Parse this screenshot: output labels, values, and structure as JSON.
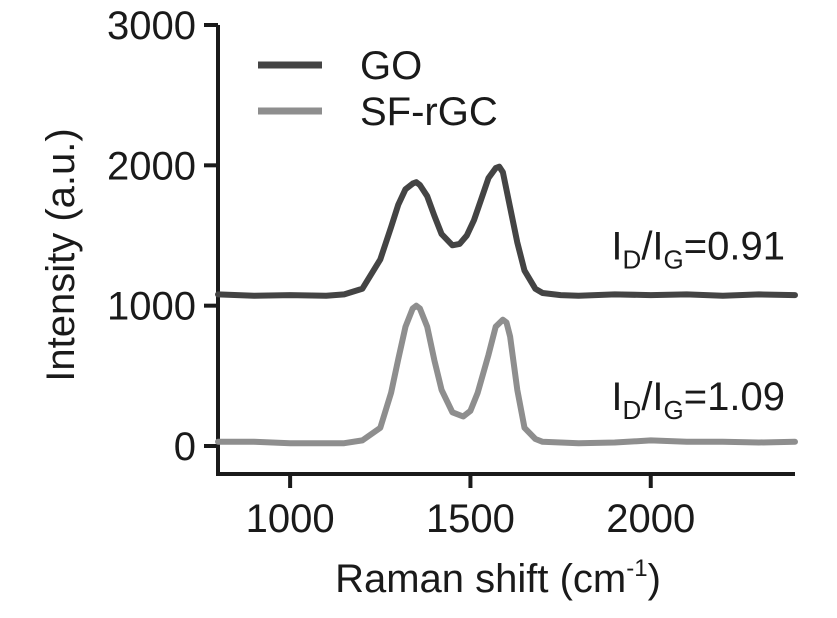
{
  "chart_data": {
    "type": "line",
    "xlabel": "Raman shift (cm",
    "xlabel_sup": "-1",
    "xlabel_close": ")",
    "ylabel": "Intensity (a.u.)",
    "xlim": [
      800,
      2400
    ],
    "ylim": [
      0,
      3000
    ],
    "x_ticks": [
      1000,
      1500,
      2000
    ],
    "x_tick_labels": [
      "1000",
      "1500",
      "2000"
    ],
    "y_ticks": [
      0,
      1000,
      2000,
      3000
    ],
    "y_tick_labels": [
      "0",
      "1000",
      "2000",
      "3000"
    ],
    "legend_position": "top-left",
    "series": [
      {
        "name": "GO",
        "color": "#444444",
        "x": [
          800,
          900,
          1000,
          1100,
          1150,
          1200,
          1250,
          1280,
          1300,
          1320,
          1340,
          1350,
          1360,
          1380,
          1400,
          1420,
          1450,
          1470,
          1490,
          1510,
          1530,
          1550,
          1570,
          1580,
          1590,
          1610,
          1630,
          1650,
          1680,
          1700,
          1750,
          1800,
          1900,
          2000,
          2100,
          2200,
          2300,
          2400
        ],
        "y": [
          1080,
          1070,
          1075,
          1070,
          1080,
          1120,
          1330,
          1560,
          1720,
          1830,
          1870,
          1880,
          1860,
          1780,
          1640,
          1510,
          1430,
          1440,
          1500,
          1610,
          1760,
          1910,
          1980,
          1990,
          1950,
          1700,
          1450,
          1250,
          1120,
          1090,
          1075,
          1070,
          1080,
          1075,
          1080,
          1070,
          1080,
          1075
        ]
      },
      {
        "name": "SF-rGC",
        "color": "#8e8e8e",
        "x": [
          800,
          900,
          1000,
          1100,
          1150,
          1200,
          1250,
          1280,
          1300,
          1320,
          1340,
          1350,
          1360,
          1380,
          1400,
          1420,
          1450,
          1480,
          1500,
          1520,
          1550,
          1570,
          1590,
          1600,
          1610,
          1630,
          1650,
          1680,
          1700,
          1750,
          1800,
          1900,
          2000,
          2100,
          2200,
          2300,
          2400
        ],
        "y": [
          30,
          30,
          20,
          20,
          20,
          40,
          130,
          380,
          620,
          850,
          980,
          1000,
          980,
          850,
          610,
          400,
          240,
          210,
          250,
          380,
          650,
          850,
          900,
          880,
          780,
          400,
          130,
          50,
          30,
          25,
          20,
          25,
          40,
          30,
          30,
          25,
          30
        ]
      }
    ],
    "annotations": [
      {
        "base": "I",
        "sub1": "D",
        "mid": "/I",
        "sub2": "G",
        "value": "=0.91",
        "x": 2400,
        "y": 1330,
        "anchor": "end"
      },
      {
        "base": "I",
        "sub1": "D",
        "mid": "/I",
        "sub2": "G",
        "value": "=1.09",
        "x": 2400,
        "y": 255,
        "anchor": "end"
      }
    ]
  }
}
